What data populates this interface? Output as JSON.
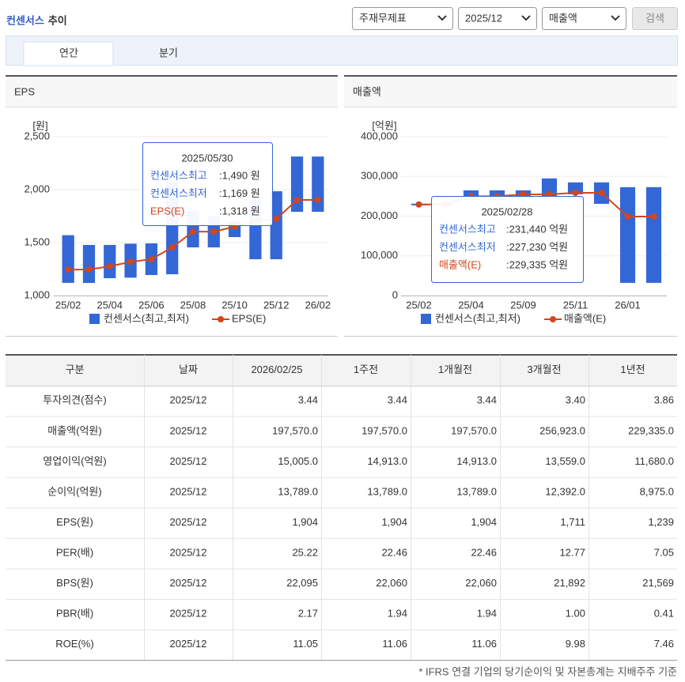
{
  "header": {
    "title_highlight": "컨센서스",
    "title": "추이",
    "selects": [
      "주재무제표",
      "2025/12",
      "매출액"
    ],
    "button": "검색",
    "tabs": [
      "연간",
      "분기"
    ]
  },
  "chart_data": [
    {
      "type": "combo",
      "title": "EPS",
      "y_unit": "[원]",
      "categories": [
        "25/02",
        null,
        "25/04",
        null,
        "25/06",
        null,
        "25/08",
        null,
        "25/10",
        null,
        "25/12",
        null,
        "26/02"
      ],
      "ylim": [
        1000,
        2500
      ],
      "yticks": [
        {
          "value": 1000,
          "label": "1,000"
        },
        {
          "value": 1500,
          "label": "1,500"
        },
        {
          "value": 2000,
          "label": "2,000"
        },
        {
          "value": 2500,
          "label": "2,500"
        }
      ],
      "grid": true,
      "series": [
        {
          "name": "컨센서스(최고,최저)",
          "type": "range",
          "color": "#3467d6",
          "high": [
            1570,
            1478,
            1478,
            1490,
            1493,
            2075,
            1800,
            1750,
            1700,
            1900,
            1985,
            2313,
            2313
          ],
          "low": [
            1120,
            1119,
            1164,
            1169,
            1194,
            1201,
            1455,
            1455,
            1552,
            1343,
            1343,
            1791,
            1791
          ]
        },
        {
          "name": "EPS(E)",
          "type": "line",
          "color": "#d2461e",
          "values": [
            1245,
            1246,
            1276,
            1318,
            1343,
            1455,
            1604,
            1604,
            1650,
            1700,
            1724,
            1903,
            1904
          ]
        }
      ],
      "tooltip": {
        "date": "2025/05/30",
        "rows": [
          {
            "label": "컨센서스최고",
            "text": ":1,490 원",
            "color": "#3467d6"
          },
          {
            "label": "컨센서스최저",
            "text": ":1,169 원",
            "color": "#3467d6"
          },
          {
            "label": "EPS(E)",
            "text": ":1,318 원",
            "color": "#d2461e"
          }
        ]
      }
    },
    {
      "type": "combo",
      "title": "매출액",
      "y_unit": "[억원]",
      "categories": [
        "25/02",
        null,
        "25/04",
        null,
        "25/09",
        null,
        "25/11",
        null,
        "26/01",
        null
      ],
      "ylim": [
        0,
        400000
      ],
      "yticks": [
        0,
        {
          "value": 100000,
          "label": "100,000"
        },
        {
          "value": 200000,
          "label": "200,000"
        },
        {
          "value": 300000,
          "label": "300,000"
        },
        {
          "value": 400000,
          "label": "400,000"
        }
      ],
      "grid": true,
      "series": [
        {
          "name": "컨센서스(최고,최저)",
          "type": "range",
          "color": "#3467d6",
          "high": [
            231440,
            231440,
            265000,
            265000,
            265000,
            295000,
            285000,
            285000,
            273000,
            273000
          ],
          "low": [
            227230,
            227230,
            240000,
            240000,
            245000,
            250000,
            255000,
            231000,
            32000,
            32000
          ]
        },
        {
          "name": "매출액(E)",
          "type": "line",
          "color": "#d2461e",
          "values": [
            229335,
            229335,
            250000,
            250000,
            254700,
            255000,
            258700,
            258700,
            199000,
            199000
          ]
        }
      ],
      "tooltip": {
        "date": "2025/02/28",
        "rows": [
          {
            "label": "컨센서스최고",
            "text": ":231,440 억원",
            "color": "#3467d6"
          },
          {
            "label": "컨센서스최저",
            "text": ":227,230 억원",
            "color": "#3467d6"
          },
          {
            "label": "매출액(E)",
            "text": ":229,335 억원",
            "color": "#d2461e"
          }
        ]
      }
    }
  ],
  "table": {
    "header": [
      "구분",
      "날짜",
      "2026/02/25",
      "1주전",
      "1개월전",
      "3개월전",
      "1년전"
    ],
    "rows": [
      [
        "투자의견(점수)",
        "2025/12",
        "3.44",
        "3.44",
        "3.44",
        "3.40",
        "3.86"
      ],
      [
        "매출액(억원)",
        "2025/12",
        "197,570.0",
        "197,570.0",
        "197,570.0",
        "256,923.0",
        "229,335.0"
      ],
      [
        "영업이익(억원)",
        "2025/12",
        "15,005.0",
        "14,913.0",
        "14,913.0",
        "13,559.0",
        "11,680.0"
      ],
      [
        "순이익(억원)",
        "2025/12",
        "13,789.0",
        "13,789.0",
        "13,789.0",
        "12,392.0",
        "8,975.0"
      ],
      [
        "EPS(원)",
        "2025/12",
        "1,904",
        "1,904",
        "1,904",
        "1,711",
        "1,239"
      ],
      [
        "PER(배)",
        "2025/12",
        "25.22",
        "22.46",
        "22.46",
        "12.77",
        "7.05"
      ],
      [
        "BPS(원)",
        "2025/12",
        "22,095",
        "22,060",
        "22,060",
        "21,892",
        "21,569"
      ],
      [
        "PBR(배)",
        "2025/12",
        "2.17",
        "1.94",
        "1.94",
        "1.00",
        "0.41"
      ],
      [
        "ROE(%)",
        "2025/12",
        "11.05",
        "11.06",
        "11.06",
        "9.98",
        "7.46"
      ]
    ]
  },
  "footnote": "* IFRS 연결 기업의 당기순이익 및 자본총계는 지배주주 기준"
}
